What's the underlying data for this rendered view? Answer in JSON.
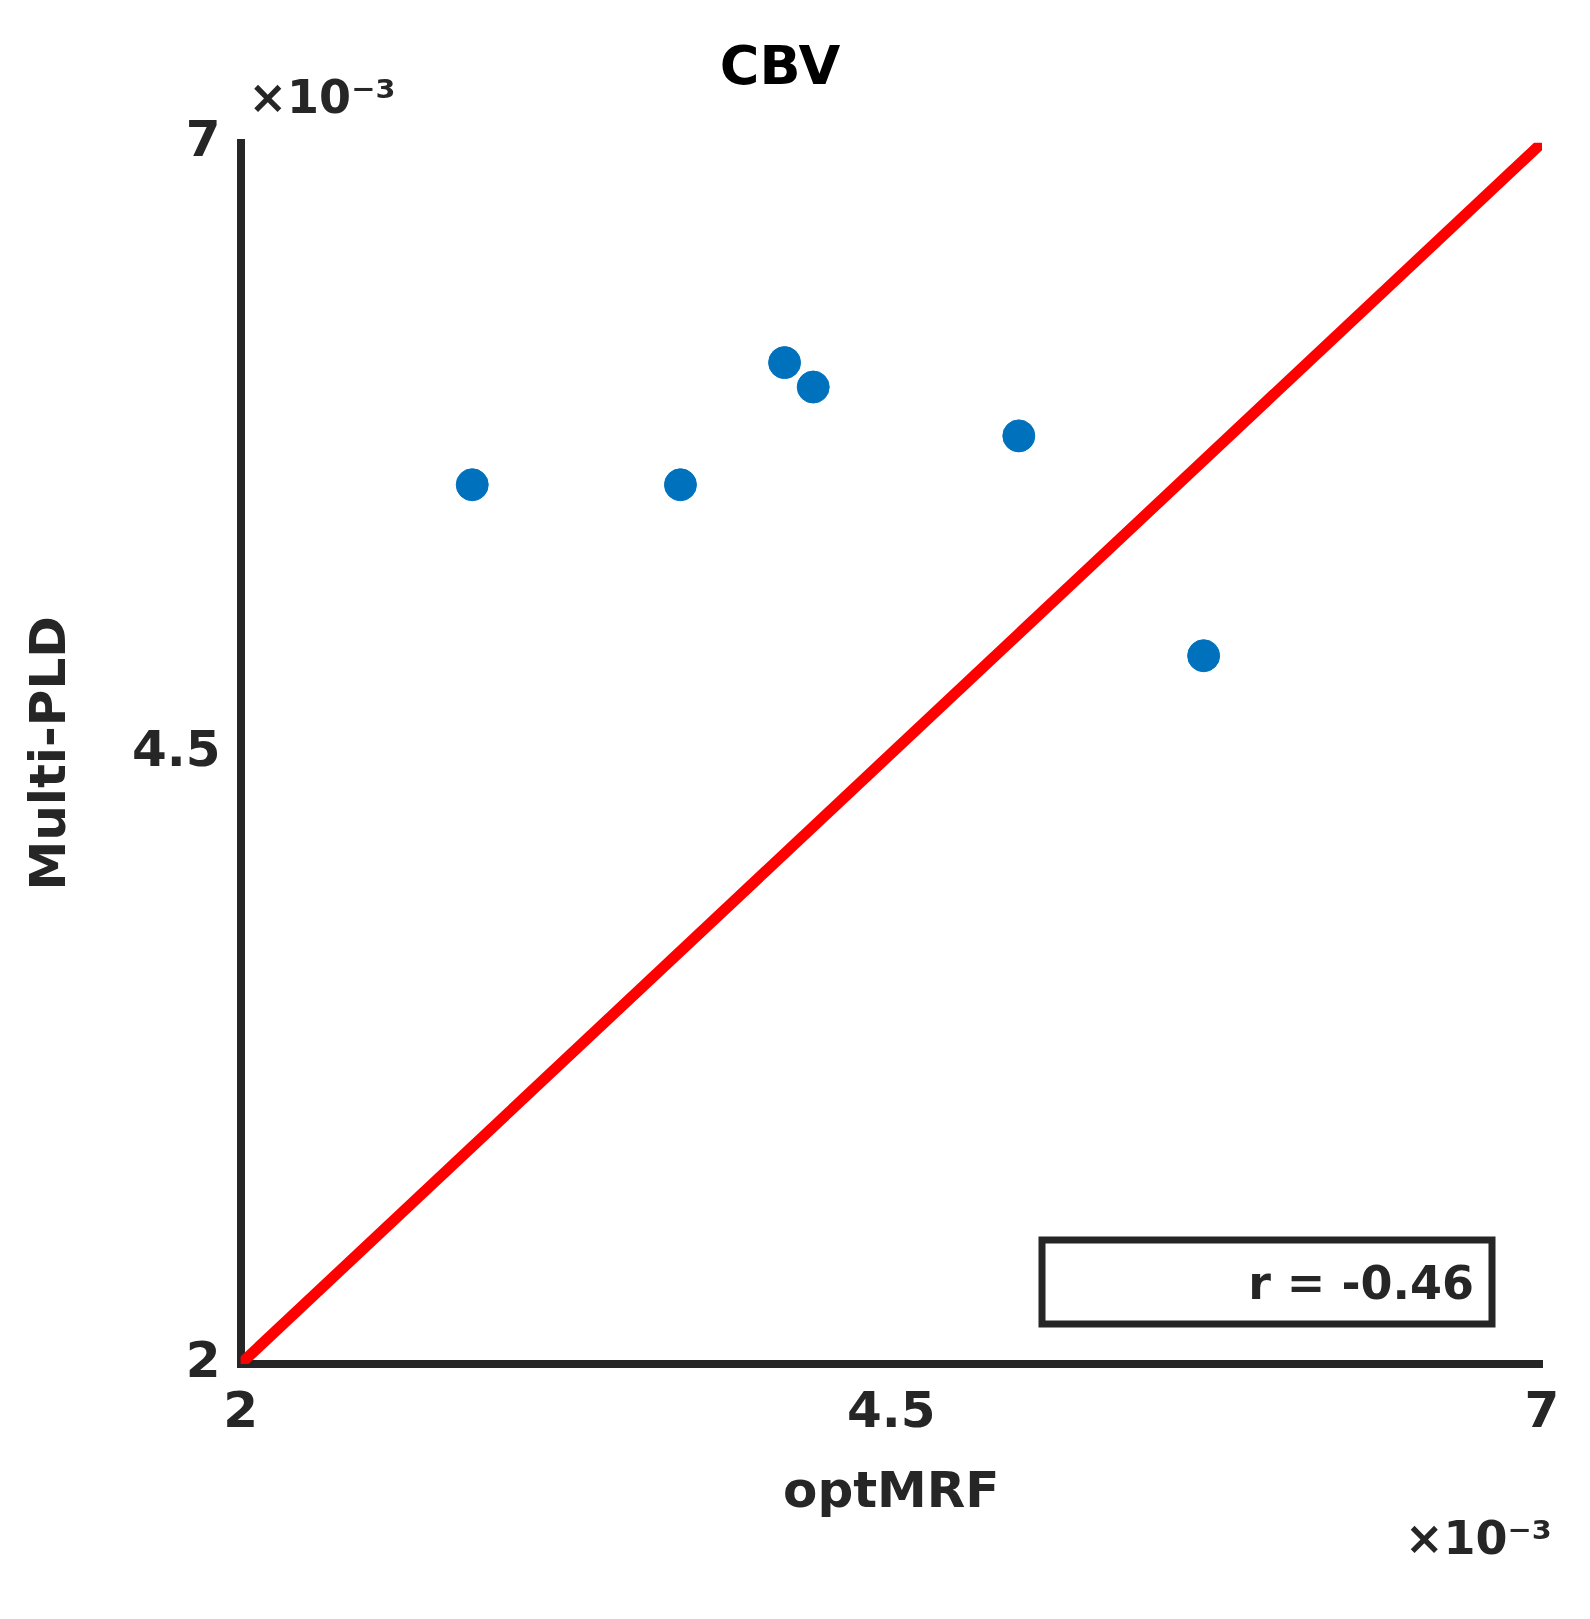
{
  "chart_data": {
    "type": "scatter",
    "title": "CBV",
    "xlabel": "optMRF",
    "ylabel": "Multi-PLD",
    "xlim": [
      2,
      7
    ],
    "xticks": [
      2,
      4.5,
      7
    ],
    "ylim": [
      2,
      7
    ],
    "yticks": [
      2,
      4.5,
      7
    ],
    "series": [
      {
        "color": "#0072bd",
        "x": [
          2.89,
          3.69,
          4.09,
          4.2,
          4.99,
          5.7
        ],
        "values": [
          5.6,
          5.6,
          6.1,
          6.0,
          5.8,
          4.9
        ]
      },
      {
        "type": "line",
        "color": "#ff0000",
        "x": [
          2,
          7
        ],
        "values": [
          2,
          7
        ],
        "marker": "none"
      }
    ],
    "annotations": [
      "×10⁻³",
      "×10⁻³",
      "r = -0.46"
    ],
    "marker": "circle",
    "grid": false,
    "legend": false
  }
}
